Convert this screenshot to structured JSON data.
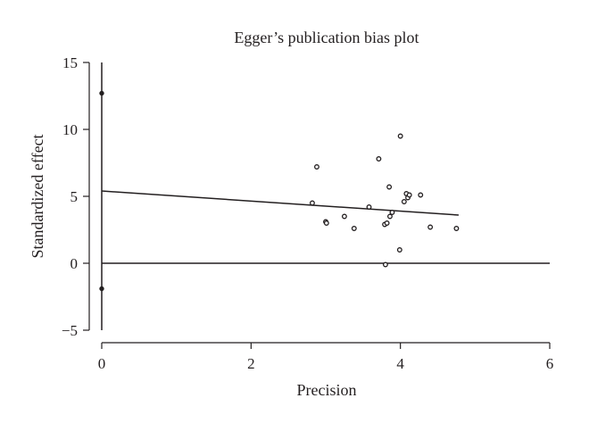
{
  "chart_data": {
    "type": "scatter",
    "title": "Egger’s publication bias plot",
    "xlabel": "Precision",
    "ylabel": "Standardized effect",
    "xlim": [
      0,
      6
    ],
    "ylim": [
      -5,
      15
    ],
    "xticks": [
      0,
      2,
      4,
      6
    ],
    "yticks": [
      15,
      10,
      5,
      0,
      -5
    ],
    "ytick_labels": [
      "15",
      "10",
      "5",
      "0",
      "−5"
    ],
    "grid": false,
    "points": [
      {
        "x": 2.82,
        "y": 4.5
      },
      {
        "x": 2.88,
        "y": 7.2
      },
      {
        "x": 3.0,
        "y": 3.1
      },
      {
        "x": 3.01,
        "y": 3.0
      },
      {
        "x": 3.25,
        "y": 3.5
      },
      {
        "x": 3.38,
        "y": 2.6
      },
      {
        "x": 3.58,
        "y": 4.2
      },
      {
        "x": 3.71,
        "y": 7.8
      },
      {
        "x": 3.79,
        "y": 2.9
      },
      {
        "x": 3.8,
        "y": -0.1
      },
      {
        "x": 3.82,
        "y": 3.0
      },
      {
        "x": 3.85,
        "y": 5.7
      },
      {
        "x": 3.86,
        "y": 3.5
      },
      {
        "x": 3.89,
        "y": 3.8
      },
      {
        "x": 3.99,
        "y": 1.0
      },
      {
        "x": 4.0,
        "y": 9.5
      },
      {
        "x": 4.05,
        "y": 4.6
      },
      {
        "x": 4.08,
        "y": 5.2
      },
      {
        "x": 4.1,
        "y": 4.9
      },
      {
        "x": 4.12,
        "y": 5.1
      },
      {
        "x": 4.27,
        "y": 5.1
      },
      {
        "x": 4.4,
        "y": 2.7
      },
      {
        "x": 4.75,
        "y": 2.6
      }
    ],
    "regression_line": {
      "x": [
        0,
        4.78
      ],
      "y": [
        5.4,
        3.6
      ]
    },
    "zero_line": {
      "y": 0,
      "x": [
        0,
        6
      ]
    },
    "intercept_ci": {
      "x": 0,
      "y_low": -5,
      "y_high": 15
    },
    "intercept_markers": [
      {
        "x": 0,
        "y": 12.7
      },
      {
        "x": 0,
        "y": -1.9
      }
    ]
  }
}
